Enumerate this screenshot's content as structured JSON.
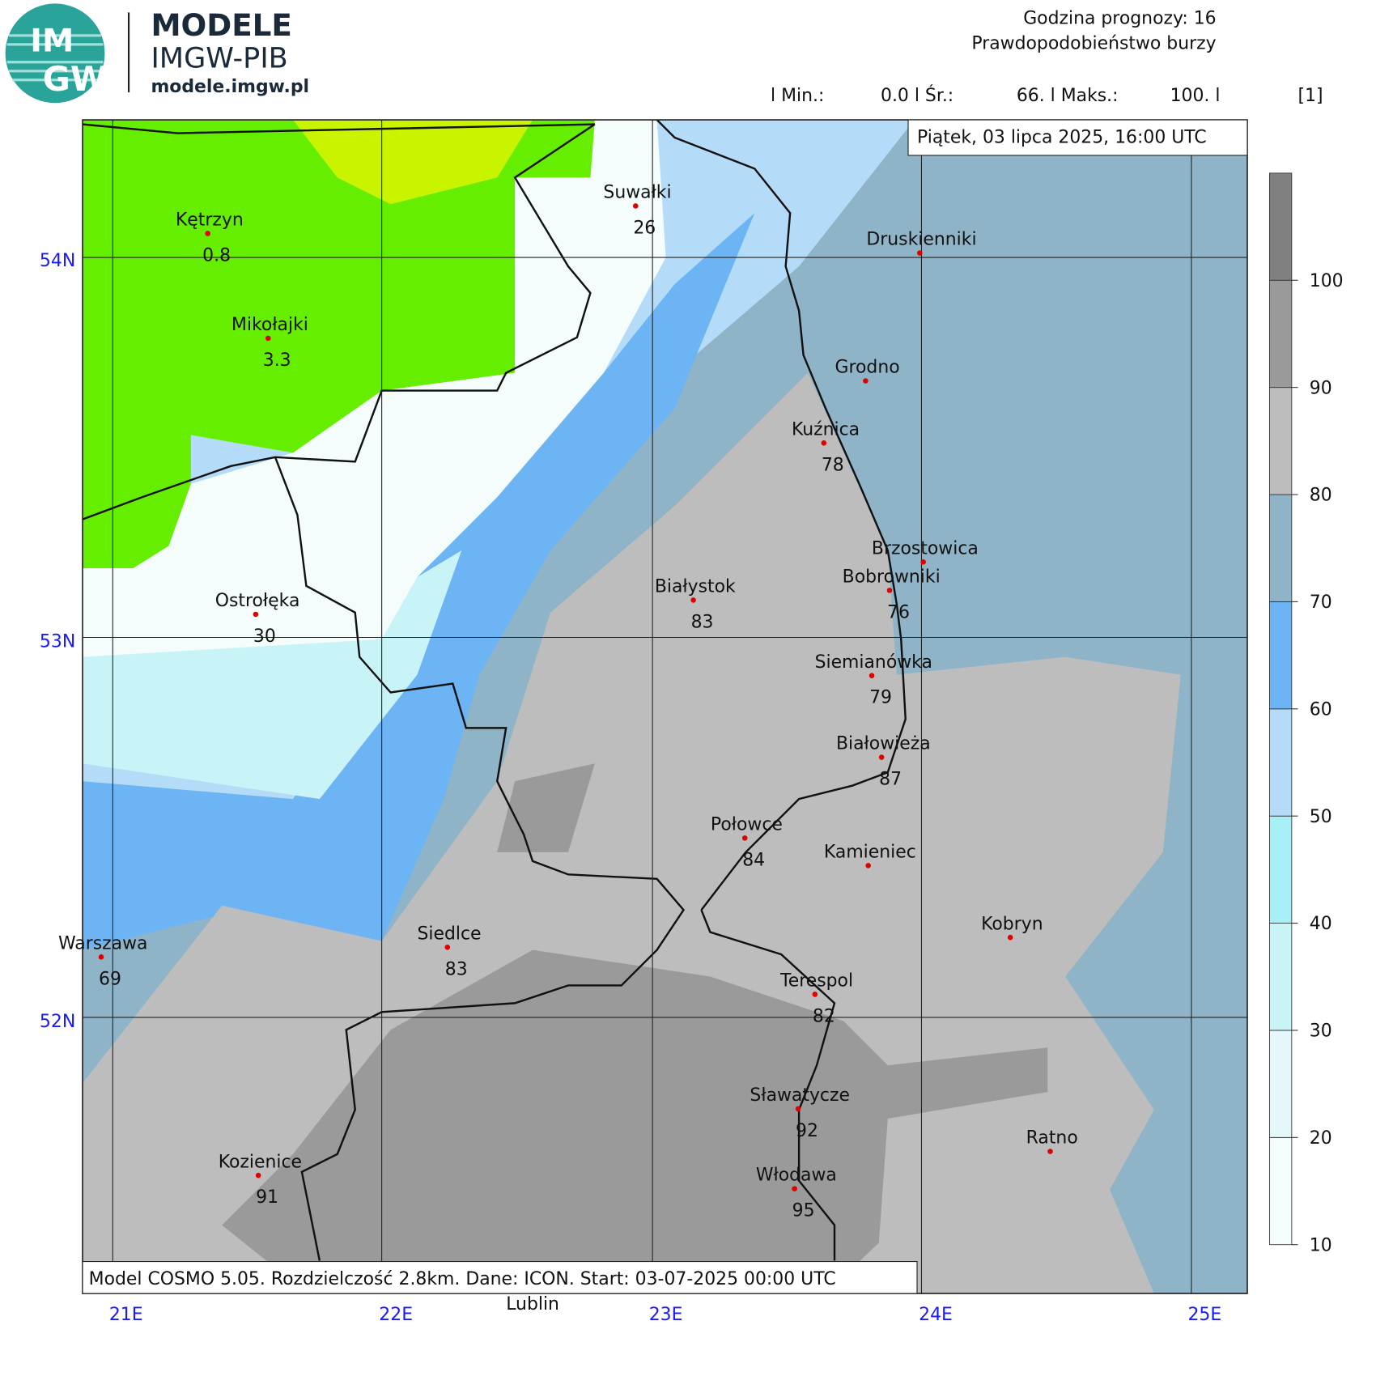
{
  "header": {
    "logo_top": "IM",
    "logo_bottom": "GW",
    "title": "MODELE",
    "subtitle": "IMGW-PIB",
    "url": "modele.imgw.pl"
  },
  "info": {
    "forecast_hour": "Godzina prognozy: 16",
    "field": "Prawdopodobieństwo burzy",
    "stats": [
      "l Min.:",
      "0.0 l Śr.:",
      "66. l Maks.:",
      "100. l"
    ],
    "unit": "[1]",
    "date": "Piątek, 03 lipca 2025, 16:00 UTC"
  },
  "footer": "Model COSMO 5.05. Rozdzielczość 2.8km. Dane: ICON. Start: 03-07-2025 00:00 UTC",
  "lat_labels": [
    "54N",
    "53N",
    "52N"
  ],
  "lon_labels": [
    "21E",
    "22E",
    "23E",
    "24E",
    "25E"
  ],
  "outside_label": "Lublin",
  "legend": {
    "ticks": [
      10,
      20,
      30,
      40,
      50,
      60,
      70,
      80,
      90,
      100
    ],
    "colors": [
      "#f4fcfc",
      "#e4f8fa",
      "#c8f4f8",
      "#a8f0f8",
      "#b4dcf8",
      "#6cb4f4",
      "#8fb4c8",
      "#bdbdbd",
      "#9a9a9a",
      "#808080"
    ]
  },
  "cities": [
    {
      "name": "Kętrzyn",
      "value": 0.8
    },
    {
      "name": "Mikołajki",
      "value": 3.3
    },
    {
      "name": "Suwałki",
      "value": 26
    },
    {
      "name": "Druskienniki"
    },
    {
      "name": "Grodno"
    },
    {
      "name": "Kuźnica",
      "value": 78
    },
    {
      "name": "Brzostowica"
    },
    {
      "name": "Bobrowniki",
      "value": 76
    },
    {
      "name": "Białystok",
      "value": 83
    },
    {
      "name": "Ostrołęka",
      "value": 30
    },
    {
      "name": "Siemianówka",
      "value": 79
    },
    {
      "name": "Białowieża",
      "value": 87
    },
    {
      "name": "Połowce",
      "value": 84
    },
    {
      "name": "Kamieniec"
    },
    {
      "name": "Kobryn"
    },
    {
      "name": "Siedlce",
      "value": 83
    },
    {
      "name": "Warszawa",
      "value": 69
    },
    {
      "name": "Terespol",
      "value": 82
    },
    {
      "name": "Sławatycze",
      "value": 92
    },
    {
      "name": "Ratno"
    },
    {
      "name": "Kozienice",
      "value": 91
    },
    {
      "name": "Włodawa",
      "value": 95
    }
  ]
}
